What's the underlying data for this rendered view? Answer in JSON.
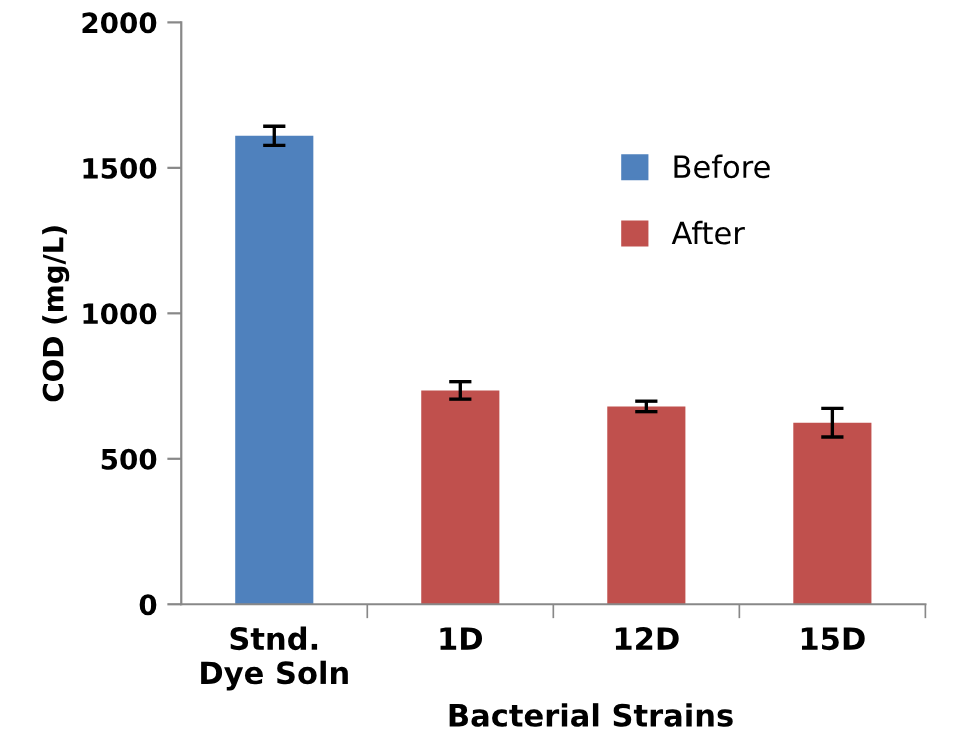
{
  "chart_data": {
    "type": "bar",
    "xlabel": "Bacterial Strains",
    "ylabel": "COD (mg/L)",
    "categories": [
      "Stnd.\nDye Soln",
      "1D",
      "12D",
      "15D"
    ],
    "series": [
      {
        "name": "Before",
        "color": "#4f81bd",
        "values": [
          1610,
          null,
          null,
          null
        ],
        "errors": [
          33,
          null,
          null,
          null
        ]
      },
      {
        "name": "After",
        "color": "#c0504d",
        "values": [
          null,
          735,
          680,
          624
        ],
        "errors": [
          null,
          30,
          18,
          49
        ]
      }
    ],
    "ylim": [
      0,
      2000
    ],
    "yticks": [
      0,
      500,
      1000,
      1500,
      2000
    ],
    "grid": false,
    "legend": "top right"
  }
}
